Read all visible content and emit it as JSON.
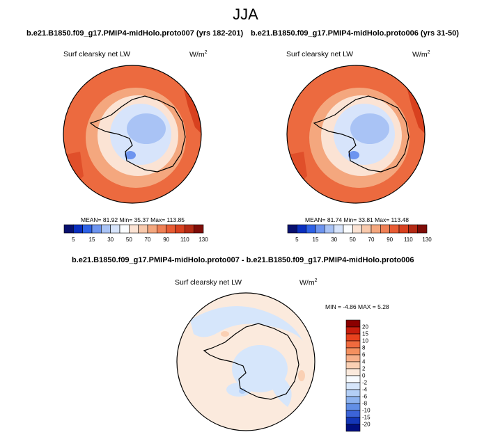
{
  "season": "JJA",
  "panels": [
    {
      "case_title": "b.e21.B1850.f09_g17.PMIP4-midHolo.proto007 (yrs 182-201)",
      "variable": "Surf clearsky net LW",
      "units": "W/m",
      "units_exp": "2",
      "stats": "MEAN=  81.92  Min=  35.37  Max= 113.85"
    },
    {
      "case_title": "b.e21.B1850.f09_g17.PMIP4-midHolo.proto006 (yrs 31-50)",
      "variable": "Surf clearsky net LW",
      "units": "W/m",
      "units_exp": "2",
      "stats": "MEAN=  81.74  Min=  33.81  Max= 113.48"
    }
  ],
  "diff": {
    "title": "b.e21.B1850.f09_g17.PMIP4-midHolo.proto007 - b.e21.B1850.f09_g17.PMIP4-midHolo.proto006",
    "variable": "Surf clearsky net LW",
    "units": "W/m",
    "units_exp": "2",
    "stats": "MIN =  -4.86 MAX =  5.28"
  },
  "chart_data": [
    {
      "type": "heatmap",
      "projection": "south-polar-stereographic",
      "title": "b.e21.B1850.f09_g17.PMIP4-midHolo.proto007 (yrs 182-201)",
      "variable": "Surf clearsky net LW",
      "units": "W/m2",
      "mean": 81.92,
      "min": 35.37,
      "max": 113.85,
      "colorbar_levels": [
        5,
        10,
        15,
        20,
        30,
        40,
        50,
        60,
        70,
        80,
        90,
        100,
        110,
        120,
        130
      ],
      "colorbar_labels": [
        "5",
        "15",
        "30",
        "50",
        "70",
        "90",
        "110",
        "130"
      ],
      "colors": [
        "#08106e",
        "#0a2fbf",
        "#2f62e6",
        "#6d94ef",
        "#a9c3f5",
        "#d7e4fb",
        "#fbfdff",
        "#fbe3d4",
        "#f8c9ac",
        "#f4a77e",
        "#ef8055",
        "#e85b33",
        "#d8411f",
        "#b42a14",
        "#7f0d08"
      ]
    },
    {
      "type": "heatmap",
      "projection": "south-polar-stereographic",
      "title": "b.e21.B1850.f09_g17.PMIP4-midHolo.proto006 (yrs 31-50)",
      "variable": "Surf clearsky net LW",
      "units": "W/m2",
      "mean": 81.74,
      "min": 33.81,
      "max": 113.48,
      "colorbar_levels": [
        5,
        10,
        15,
        20,
        30,
        40,
        50,
        60,
        70,
        80,
        90,
        100,
        110,
        120,
        130
      ],
      "colorbar_labels": [
        "5",
        "15",
        "30",
        "50",
        "70",
        "90",
        "110",
        "130"
      ],
      "colors": [
        "#08106e",
        "#0a2fbf",
        "#2f62e6",
        "#6d94ef",
        "#a9c3f5",
        "#d7e4fb",
        "#fbfdff",
        "#fbe3d4",
        "#f8c9ac",
        "#f4a77e",
        "#ef8055",
        "#e85b33",
        "#d8411f",
        "#b42a14",
        "#7f0d08"
      ]
    },
    {
      "type": "heatmap",
      "projection": "south-polar-stereographic",
      "title": "b.e21.B1850.f09_g17.PMIP4-midHolo.proto007 - b.e21.B1850.f09_g17.PMIP4-midHolo.proto006",
      "variable": "Surf clearsky net LW",
      "units": "W/m2",
      "min": -4.86,
      "max": 5.28,
      "colorbar_levels": [
        20,
        15,
        10,
        8,
        6,
        4,
        2,
        0,
        -2,
        -4,
        -6,
        -8,
        -10,
        -15,
        -20
      ],
      "colorbar_labels": [
        "20",
        "15",
        "10",
        "8",
        "6",
        "4",
        "2",
        "0",
        "-2",
        "-4",
        "-6",
        "-8",
        "-10",
        "-15",
        "-20"
      ],
      "colors": [
        "#8b0000",
        "#c81e0e",
        "#e8421e",
        "#f06a3e",
        "#f4905f",
        "#f7b08a",
        "#fad0b4",
        "#fbeadd",
        "#f7fbff",
        "#d6e6fb",
        "#b3cff6",
        "#8db3ef",
        "#628fe6",
        "#3c64d8",
        "#1437b8",
        "#000f80"
      ]
    }
  ]
}
